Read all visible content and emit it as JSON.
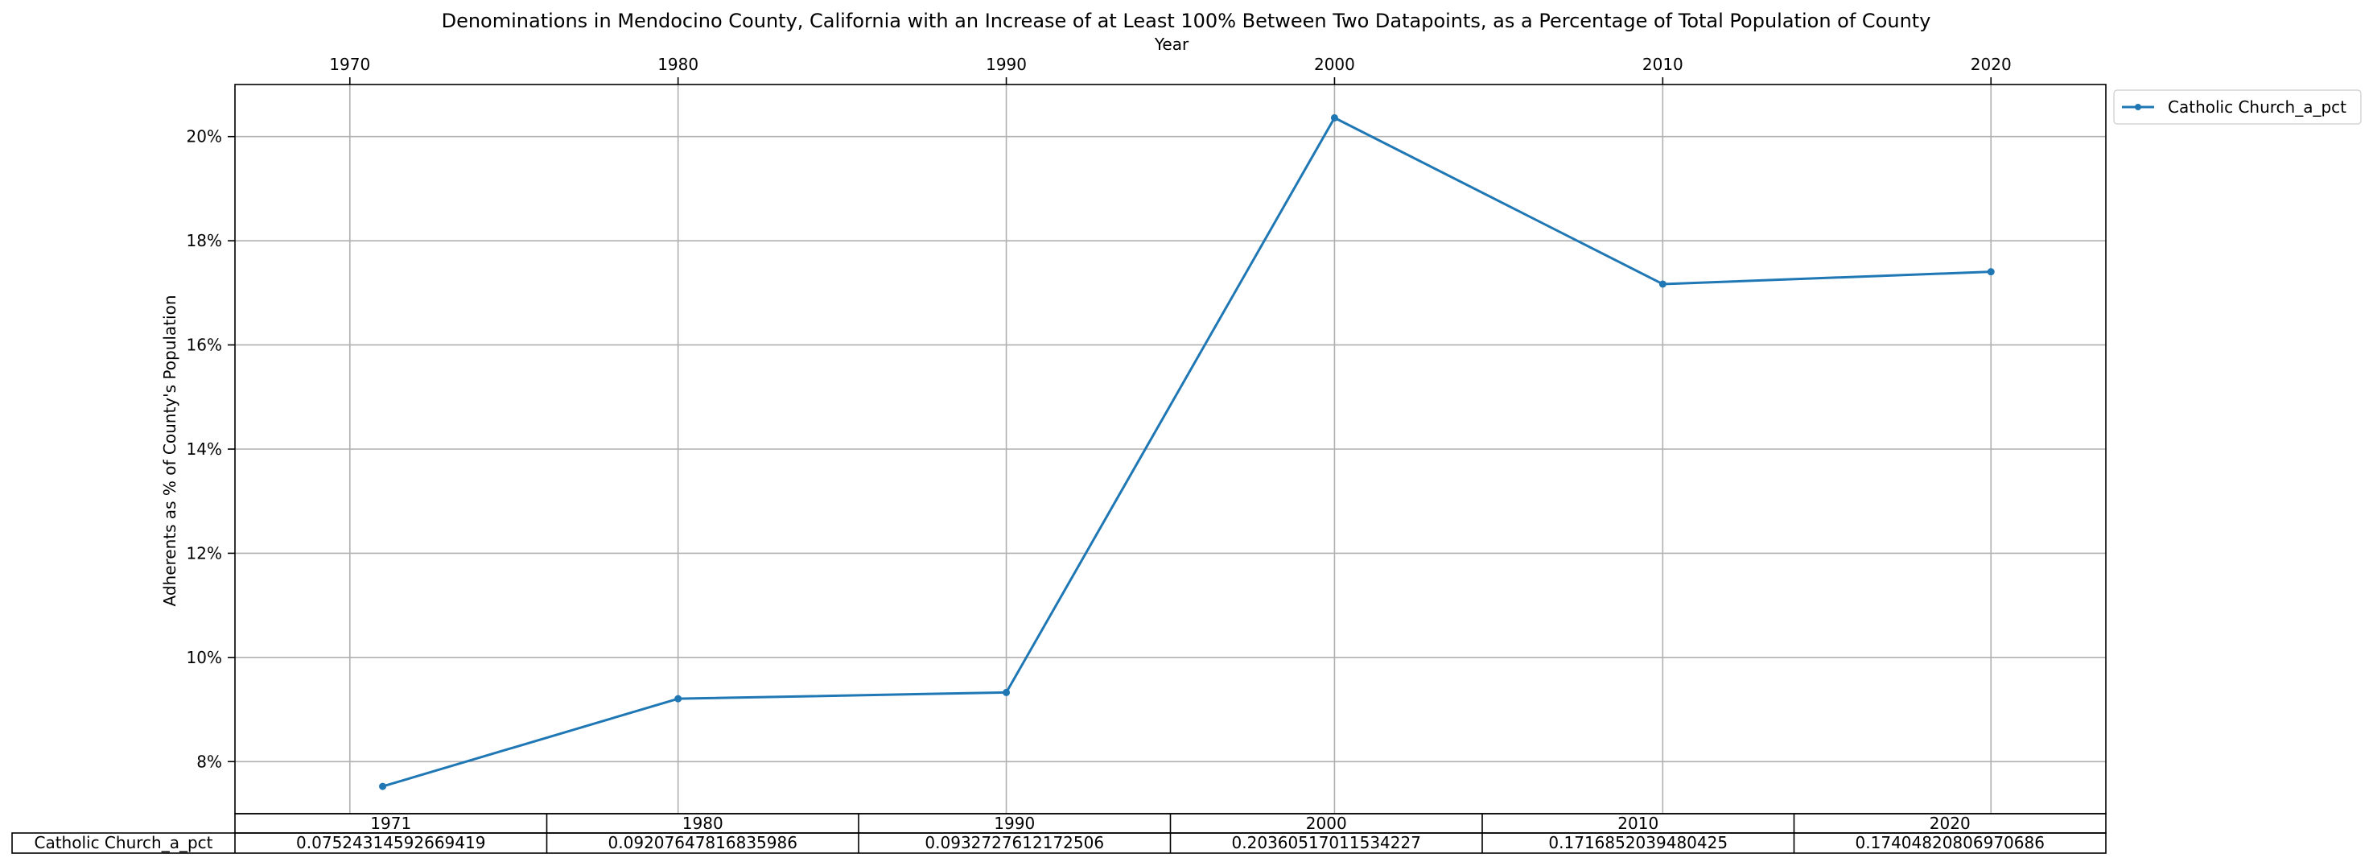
{
  "chart_data": {
    "type": "line",
    "title": "Denominations in Mendocino County, California with an Increase of at Least 100% Between Two Datapoints, as a Percentage of Total Population of County",
    "xlabel": "Year",
    "ylabel": "Adherents as % of County's Population",
    "x_axis_position": "top",
    "xlim": [
      1966.5,
      2023.5
    ],
    "ylim": [
      0.07,
      0.21
    ],
    "x_ticks": [
      1970,
      1980,
      1990,
      2000,
      2010,
      2020
    ],
    "x_tick_labels": [
      "1970",
      "1980",
      "1990",
      "2000",
      "2010",
      "2020"
    ],
    "y_ticks": [
      0.08,
      0.1,
      0.12,
      0.14,
      0.16,
      0.18,
      0.2
    ],
    "y_tick_labels": [
      "8%",
      "10%",
      "12%",
      "14%",
      "16%",
      "18%",
      "20%"
    ],
    "grid": true,
    "legend_position": "outside-top-right",
    "colors": {
      "series": "#1f77b4",
      "grid": "#b0b0b0",
      "axes": "#000000"
    },
    "x": [
      1971,
      1980,
      1990,
      2000,
      2010,
      2020
    ],
    "series": [
      {
        "name": "Catholic Church_a_pct",
        "values": [
          0.0752431459266941,
          0.0920764781683598,
          0.0932727612172506,
          0.203605170115342,
          0.171685203948042,
          0.174048208069706
        ]
      }
    ],
    "table": {
      "col_labels": [
        "1971",
        "1980",
        "1990",
        "2000",
        "2010",
        "2020"
      ],
      "rows": [
        {
          "label": "Catholic Church_a_pct",
          "cells": [
            "0.07524314592669419",
            "0.09207647816835986",
            "0.0932727612172506",
            "0.20360517011534227",
            "0.1716852039480425",
            "0.17404820806970686"
          ]
        }
      ]
    }
  }
}
